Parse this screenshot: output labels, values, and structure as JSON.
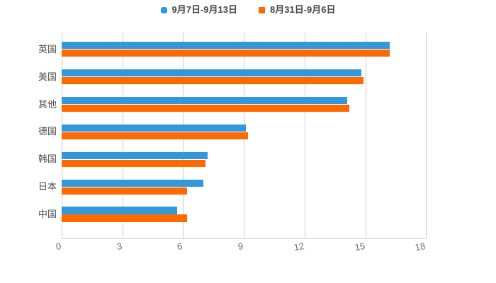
{
  "legend": {
    "items": [
      {
        "label": "9月7日-9月13日",
        "color": "#3398db"
      },
      {
        "label": "8月31日-9月6日",
        "color": "#ff6a00"
      }
    ]
  },
  "colors": {
    "background": "#ffffff",
    "gridline": "#cccccc",
    "axis_line": "#cccccc",
    "tick_label": "#6e6e6e",
    "category_label": "#4d4d4d",
    "legend_text": "#464646",
    "series_blue": "#3398db",
    "series_orange": "#ff6a00"
  },
  "chart_data": {
    "type": "bar",
    "orientation": "horizontal",
    "title": "",
    "xlabel": "",
    "ylabel": "",
    "categories": [
      "英国",
      "美国",
      "其他",
      "德国",
      "韩国",
      "日本",
      "中国"
    ],
    "series": [
      {
        "name": "9月7日-9月13日",
        "color": "#3398db",
        "values": [
          16.2,
          14.8,
          14.1,
          9.1,
          7.2,
          7.0,
          5.7
        ]
      },
      {
        "name": "8月31日-9月6日",
        "color": "#ff6a00",
        "values": [
          16.2,
          14.9,
          14.2,
          9.2,
          7.1,
          6.2,
          6.2
        ]
      }
    ],
    "x_ticks": [
      0,
      3,
      6,
      9,
      12,
      15,
      18
    ],
    "xlim": [
      0,
      18
    ],
    "grid": true,
    "legend_position": "top",
    "tick_label_rotation_deg": -10
  }
}
